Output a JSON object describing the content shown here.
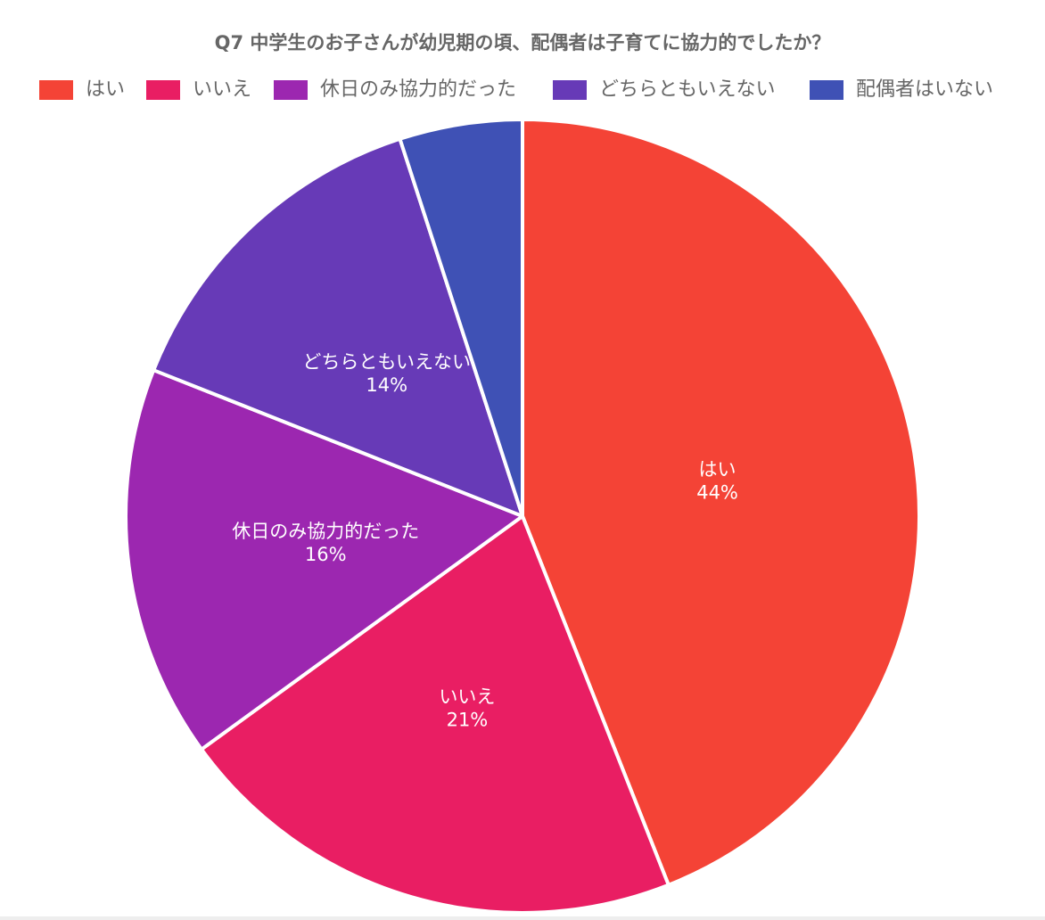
{
  "chart_data": {
    "type": "pie",
    "title": "Q7 中学生のお子さんが幼児期の頃、配偶者は子育てに協力的でしたか？",
    "legend_position": "top",
    "slices": [
      {
        "label": "はい",
        "value": 44,
        "value_label": "44%",
        "color": "#F44336",
        "show_label": true
      },
      {
        "label": "いいえ",
        "value": 21,
        "value_label": "21%",
        "color": "#E91E63",
        "show_label": true
      },
      {
        "label": "休日のみ協力的だった",
        "value": 16,
        "value_label": "16%",
        "color": "#9C27B0",
        "show_label": true
      },
      {
        "label": "どちらともいえない",
        "value": 14,
        "value_label": "14%",
        "color": "#673AB7",
        "show_label": true
      },
      {
        "label": "配偶者はいない",
        "value": 5,
        "value_label": "",
        "color": "#3F51B5",
        "show_label": false
      }
    ]
  }
}
